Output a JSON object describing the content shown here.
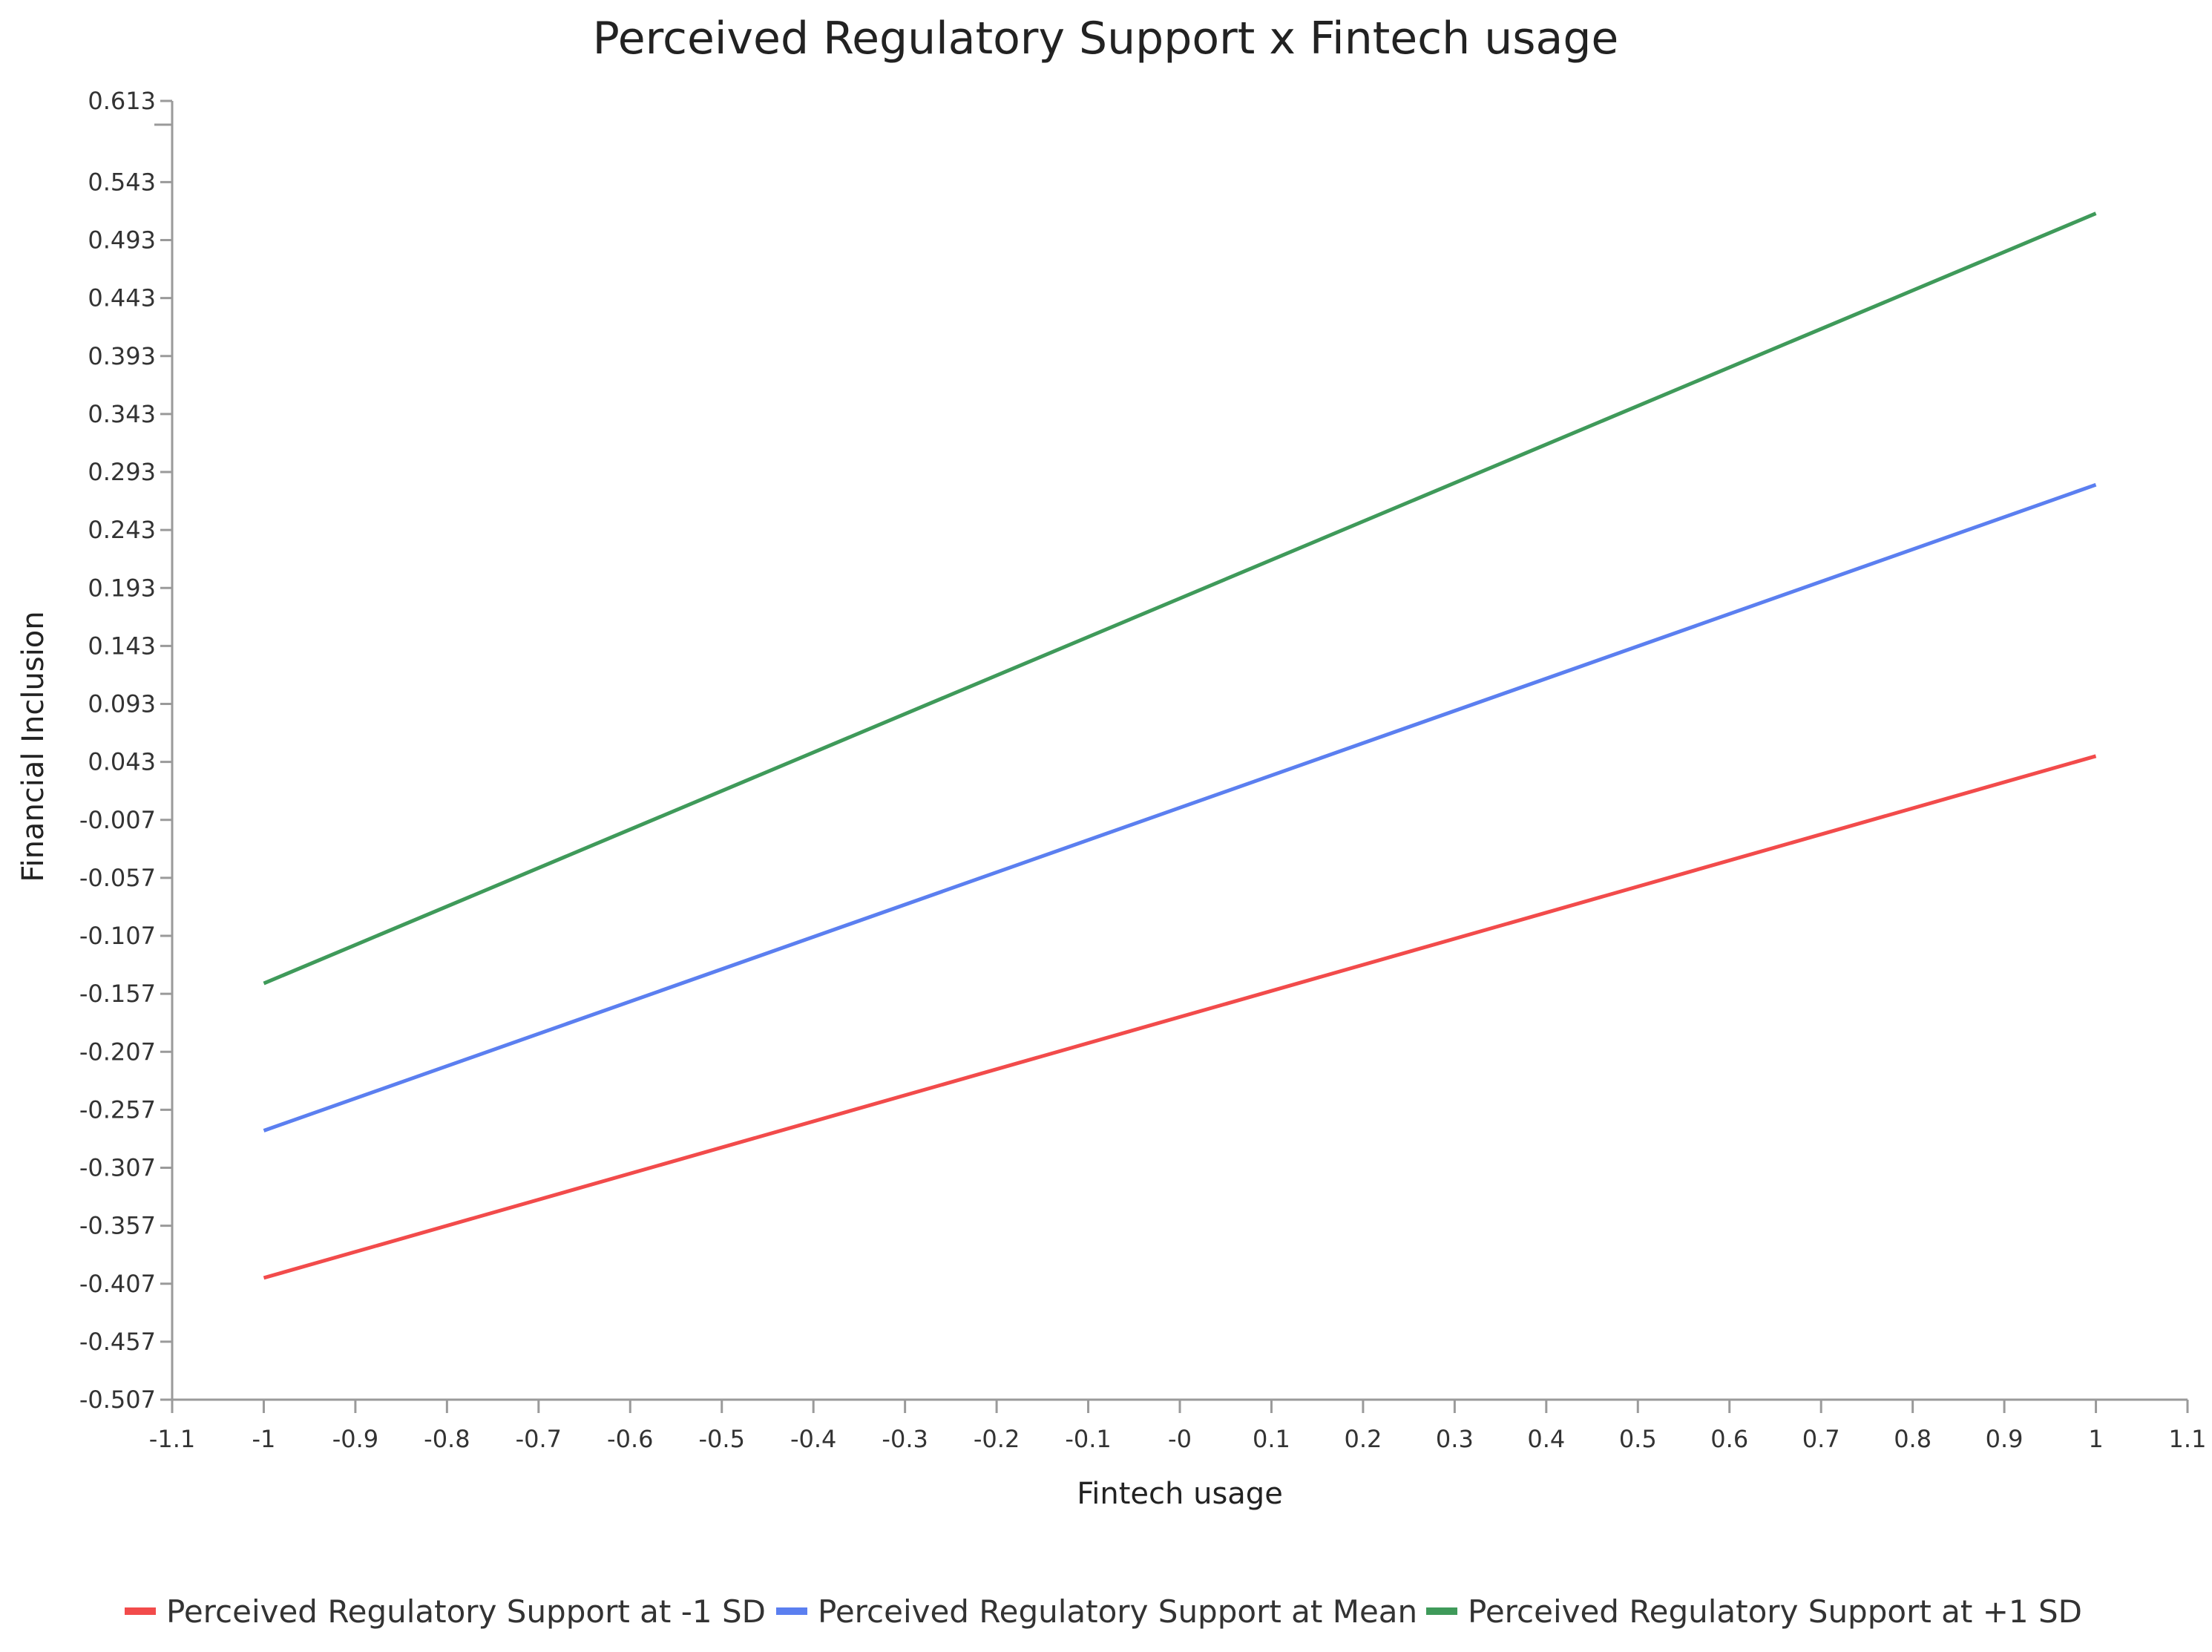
{
  "chart_data": {
    "type": "line",
    "title": "Perceived Regulatory Support x Fintech usage",
    "xlabel": "Fintech usage",
    "ylabel": "Financial Inclusion",
    "xlim": [
      -1.1,
      1.1
    ],
    "ylim": [
      -0.507,
      0.613
    ],
    "x_ticks": [
      "-1.1",
      "-1",
      "-0.9",
      "-0.8",
      "-0.7",
      "-0.6",
      "-0.5",
      "-0.4",
      "-0.3",
      "-0.2",
      "-0.1",
      "-0",
      "0.1",
      "0.2",
      "0.3",
      "0.4",
      "0.5",
      "0.6",
      "0.7",
      "0.8",
      "0.9",
      "1",
      "1.1"
    ],
    "y_ticks": [
      "0.613",
      "0.543",
      "0.493",
      "0.443",
      "0.393",
      "0.343",
      "0.293",
      "0.243",
      "0.193",
      "0.143",
      "0.093",
      "0.043",
      "-0.007",
      "-0.057",
      "-0.107",
      "-0.157",
      "-0.207",
      "-0.257",
      "-0.307",
      "-0.357",
      "-0.407",
      "-0.457",
      "-0.507"
    ],
    "grid": false,
    "legend_position": "bottom",
    "series": [
      {
        "name": "Perceived Regulatory Support at -1 SD",
        "color": "#f24b4b",
        "x": [
          -1,
          1
        ],
        "y": [
          -0.402,
          0.048
        ]
      },
      {
        "name": "Perceived Regulatory Support at Mean",
        "color": "#5b7ff0",
        "x": [
          -1,
          1
        ],
        "y": [
          -0.275,
          0.282
        ]
      },
      {
        "name": "Perceived Regulatory Support at +1 SD",
        "color": "#3f9a5a",
        "x": [
          -1,
          1
        ],
        "y": [
          -0.148,
          0.516
        ]
      }
    ]
  }
}
